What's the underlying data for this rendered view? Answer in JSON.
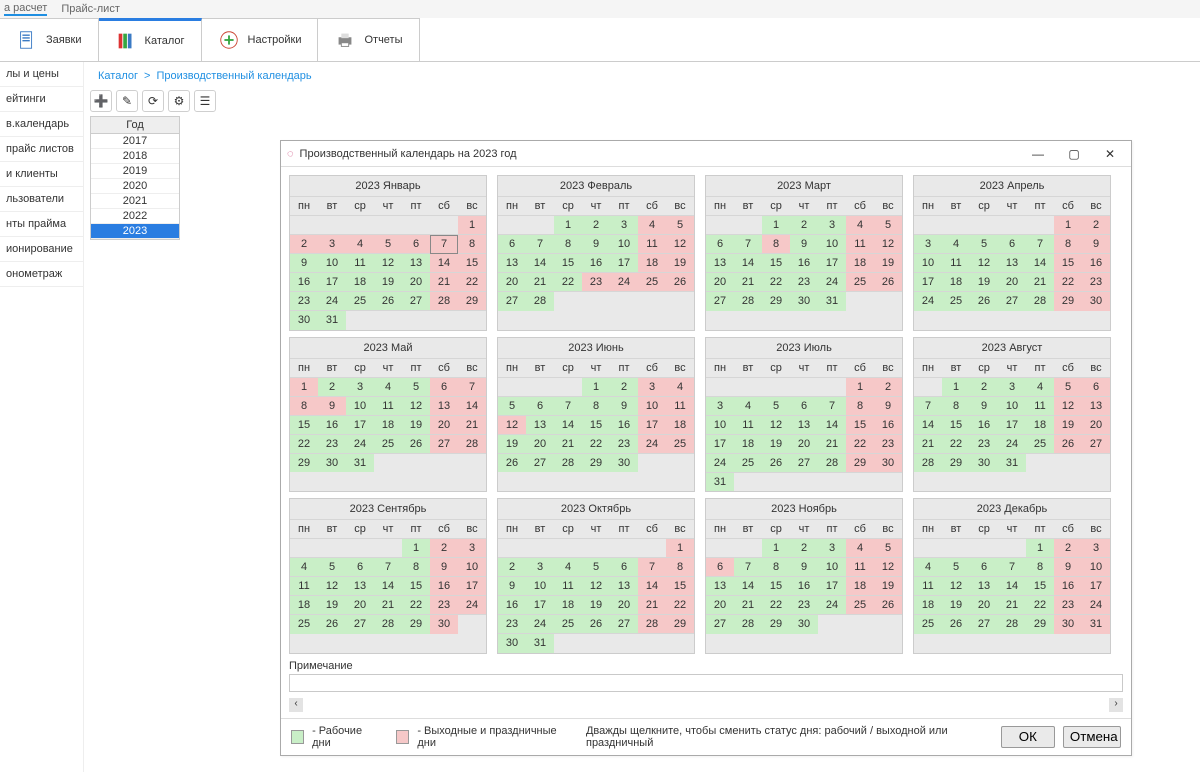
{
  "top_tabs": [
    "а расчет",
    "Прайс-лист"
  ],
  "main_tabs": [
    {
      "label": "Заявки",
      "icon": "doc"
    },
    {
      "label": "Каталог",
      "icon": "books"
    },
    {
      "label": "Настройки",
      "icon": "plus"
    },
    {
      "label": "Отчеты",
      "icon": "printer"
    }
  ],
  "main_tab_active": 1,
  "sidebar": [
    "лы и цены",
    "ейтинги",
    "в.календарь",
    "прайс листов",
    "и клиенты",
    "льзователи",
    "нты прайма",
    "ионирование",
    "онометраж"
  ],
  "breadcrumb": [
    "Каталог",
    "Производственный календарь"
  ],
  "toolbar_icons": [
    "add-icon",
    "edit-icon",
    "refresh-icon",
    "gear-icon",
    "filter-icon"
  ],
  "year_header": "Год",
  "years": [
    "2017",
    "2018",
    "2019",
    "2020",
    "2021",
    "2022",
    "2023"
  ],
  "year_selected_idx": 6,
  "dialog": {
    "title": "Производственный календарь на 2023 год",
    "legend_work": "- Рабочие дни",
    "legend_off": "- Выходные и праздничные дни",
    "hint": "Дважды щелкните, чтобы сменить статус дня: рабочий / выходной или праздничный",
    "note_label": "Примечание",
    "ok": "ОК",
    "cancel": "Отмена",
    "day_names": [
      "пн",
      "вт",
      "ср",
      "чт",
      "пт",
      "сб",
      "вс"
    ],
    "today": {
      "m": 0,
      "d": 7
    },
    "colors": {
      "work": "#c9efc7",
      "off": "#f6c8c8",
      "grid_bg": "#e9e9e9"
    },
    "months": [
      {
        "n": "2023 Январь",
        "start": 6,
        "len": 31,
        "off": [
          1,
          2,
          3,
          4,
          5,
          6,
          7,
          8,
          14,
          15,
          21,
          22,
          28,
          29
        ]
      },
      {
        "n": "2023 Февраль",
        "start": 2,
        "len": 28,
        "off": [
          4,
          5,
          11,
          12,
          18,
          19,
          23,
          24,
          25,
          26
        ]
      },
      {
        "n": "2023 Март",
        "start": 2,
        "len": 31,
        "off": [
          4,
          5,
          8,
          11,
          12,
          18,
          19,
          25,
          26
        ]
      },
      {
        "n": "2023 Апрель",
        "start": 5,
        "len": 30,
        "off": [
          1,
          2,
          8,
          9,
          15,
          16,
          22,
          23,
          29,
          30
        ]
      },
      {
        "n": "2023 Май",
        "start": 0,
        "len": 31,
        "off": [
          1,
          6,
          7,
          8,
          9,
          13,
          14,
          20,
          21,
          27,
          28
        ]
      },
      {
        "n": "2023 Июнь",
        "start": 3,
        "len": 30,
        "off": [
          3,
          4,
          10,
          11,
          12,
          17,
          18,
          24,
          25
        ]
      },
      {
        "n": "2023 Июль",
        "start": 5,
        "len": 31,
        "off": [
          1,
          2,
          8,
          9,
          15,
          16,
          22,
          23,
          29,
          30
        ]
      },
      {
        "n": "2023 Август",
        "start": 1,
        "len": 31,
        "off": [
          5,
          6,
          12,
          13,
          19,
          20,
          26,
          27
        ]
      },
      {
        "n": "2023 Сентябрь",
        "start": 4,
        "len": 30,
        "off": [
          2,
          3,
          9,
          10,
          16,
          17,
          23,
          24,
          30
        ]
      },
      {
        "n": "2023 Октябрь",
        "start": 6,
        "len": 31,
        "off": [
          1,
          7,
          8,
          14,
          15,
          21,
          22,
          28,
          29
        ]
      },
      {
        "n": "2023 Ноябрь",
        "start": 2,
        "len": 30,
        "off": [
          4,
          5,
          6,
          11,
          12,
          18,
          19,
          25,
          26
        ]
      },
      {
        "n": "2023 Декабрь",
        "start": 4,
        "len": 31,
        "off": [
          2,
          3,
          9,
          10,
          16,
          17,
          23,
          24,
          30,
          31
        ]
      }
    ]
  }
}
